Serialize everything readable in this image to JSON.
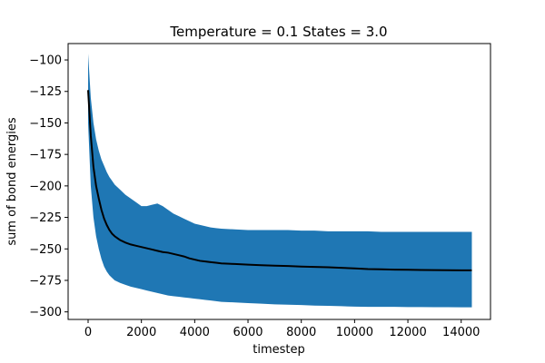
{
  "chart_data": {
    "type": "area",
    "title": "Temperature = 0.1 States = 3.0",
    "xlabel": "timestep",
    "ylabel": "sum of bond energies",
    "xlim": [
      -750,
      15100
    ],
    "ylim": [
      -306,
      -87
    ],
    "xticks": [
      0,
      2000,
      4000,
      6000,
      8000,
      10000,
      12000,
      14000
    ],
    "yticks": [
      -100,
      -125,
      -150,
      -175,
      -200,
      -225,
      -250,
      -275,
      -300
    ],
    "grid": false,
    "colors": {
      "band": "#1f77b4",
      "mean": "#000000"
    },
    "series": [
      {
        "kind": "mean-line",
        "x": [
          0,
          100,
          200,
          300,
          400,
          500,
          600,
          700,
          800,
          900,
          1000,
          1200,
          1400,
          1600,
          1800,
          2000,
          2200,
          2400,
          2600,
          2800,
          3000,
          3200,
          3400,
          3600,
          3800,
          4000,
          4200,
          4400,
          4600,
          4800,
          5000,
          5500,
          6000,
          6500,
          7000,
          7500,
          8000,
          8500,
          9000,
          9500,
          10000,
          10500,
          11000,
          11500,
          12000,
          12500,
          13000,
          13500,
          14000,
          14400
        ],
        "y": [
          -124,
          -160,
          -185,
          -200,
          -210,
          -219,
          -226,
          -231,
          -235,
          -238,
          -240,
          -243,
          -245,
          -246.5,
          -247.5,
          -248.5,
          -249.5,
          -250.5,
          -251.5,
          -252.5,
          -253,
          -254,
          -255,
          -256,
          -257.5,
          -258.5,
          -259.5,
          -260,
          -260.5,
          -261,
          -261.5,
          -262,
          -262.5,
          -263,
          -263.3,
          -263.6,
          -264,
          -264.3,
          -264.6,
          -265,
          -265.5,
          -266,
          -266.2,
          -266.5,
          -266.6,
          -266.7,
          -266.8,
          -266.9,
          -267,
          -267
        ]
      },
      {
        "kind": "band-upper",
        "x": [
          0,
          100,
          200,
          300,
          400,
          500,
          600,
          700,
          800,
          900,
          1000,
          1200,
          1400,
          1600,
          1800,
          2000,
          2200,
          2400,
          2600,
          2800,
          3000,
          3200,
          3400,
          3600,
          3800,
          4000,
          4200,
          4400,
          4600,
          4800,
          5000,
          5500,
          6000,
          6500,
          7000,
          7500,
          8000,
          8500,
          9000,
          9500,
          10000,
          10500,
          11000,
          11500,
          12000,
          12500,
          13000,
          13500,
          14000,
          14400
        ],
        "y": [
          -95,
          -130,
          -150,
          -163,
          -172,
          -179,
          -184,
          -189,
          -193,
          -196,
          -199,
          -203,
          -207,
          -210,
          -213,
          -216,
          -216,
          -215,
          -214,
          -216,
          -219,
          -222,
          -224,
          -226,
          -228,
          -230,
          -231,
          -232,
          -233,
          -233.5,
          -234,
          -234.5,
          -235,
          -235,
          -235,
          -235,
          -235.5,
          -235.5,
          -236,
          -236,
          -236,
          -236,
          -236.5,
          -236.5,
          -236.5,
          -236.5,
          -236.5,
          -236.5,
          -236.5,
          -236.5
        ]
      },
      {
        "kind": "band-lower",
        "x": [
          0,
          100,
          200,
          300,
          400,
          500,
          600,
          700,
          800,
          900,
          1000,
          1200,
          1400,
          1600,
          1800,
          2000,
          2200,
          2400,
          2600,
          2800,
          3000,
          3200,
          3400,
          3600,
          3800,
          4000,
          4200,
          4400,
          4600,
          4800,
          5000,
          5500,
          6000,
          6500,
          7000,
          7500,
          8000,
          8500,
          9000,
          9500,
          10000,
          10500,
          11000,
          11500,
          12000,
          12500,
          13000,
          13500,
          14000,
          14400
        ],
        "y": [
          -150,
          -200,
          -225,
          -240,
          -250,
          -258,
          -264,
          -268,
          -271,
          -273,
          -275,
          -277,
          -278.5,
          -280,
          -281,
          -282,
          -283,
          -284,
          -285,
          -286,
          -287,
          -287.5,
          -288,
          -288.5,
          -289,
          -289.5,
          -290,
          -290.5,
          -291,
          -291.5,
          -292,
          -292.5,
          -293,
          -293.5,
          -294,
          -294.3,
          -294.6,
          -295,
          -295.2,
          -295.5,
          -295.8,
          -296,
          -296,
          -296,
          -296.2,
          -296.2,
          -296.3,
          -296.3,
          -296.4,
          -296.4
        ]
      }
    ]
  }
}
